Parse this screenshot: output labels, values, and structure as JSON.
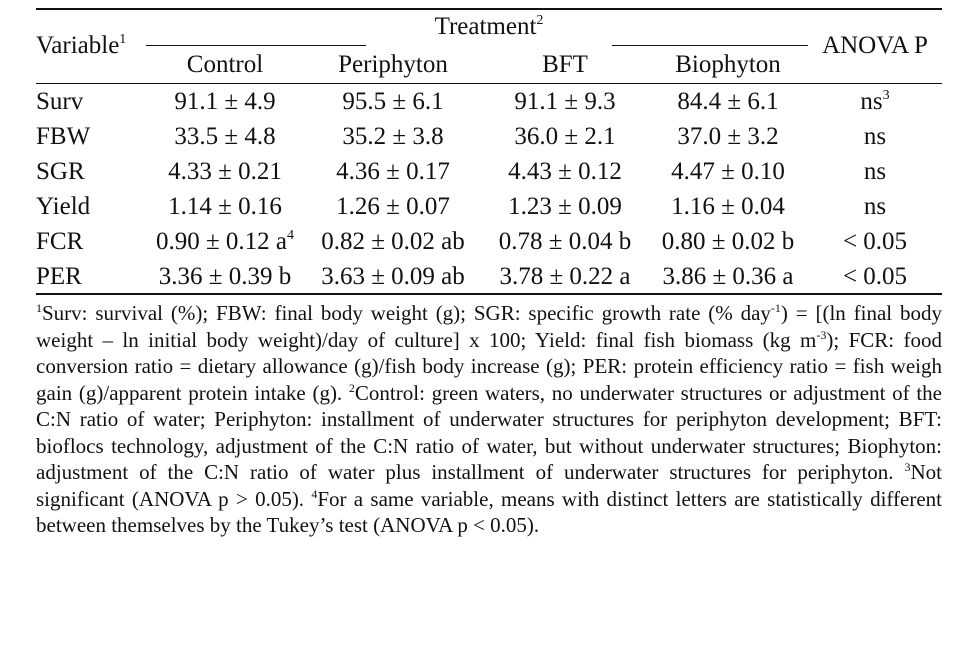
{
  "table": {
    "header": {
      "variable": "Variable",
      "variable_sup": "1",
      "treatment": "Treatment",
      "treatment_sup": "2",
      "anova": "ANOVA P",
      "groups": [
        "Control",
        "Periphyton",
        "BFT",
        "Biophyton"
      ]
    },
    "rows": [
      {
        "variable": "Surv",
        "control": "91.1 ± 4.9",
        "control_sup": "",
        "periphyton": "95.5 ± 6.1",
        "bft": "91.1 ± 9.3",
        "biophyton": "84.4 ± 6.1",
        "anova": "ns",
        "anova_sup": "3"
      },
      {
        "variable": "FBW",
        "control": "33.5 ± 4.8",
        "control_sup": "",
        "periphyton": "35.2 ± 3.8",
        "bft": "36.0 ± 2.1",
        "biophyton": "37.0 ± 3.2",
        "anova": "ns",
        "anova_sup": ""
      },
      {
        "variable": "SGR",
        "control": "4.33 ± 0.21",
        "control_sup": "",
        "periphyton": "4.36 ± 0.17",
        "bft": "4.43 ± 0.12",
        "biophyton": "4.47 ± 0.10",
        "anova": "ns",
        "anova_sup": ""
      },
      {
        "variable": "Yield",
        "control": "1.14 ± 0.16",
        "control_sup": "",
        "periphyton": "1.26 ± 0.07",
        "bft": "1.23 ± 0.09",
        "biophyton": "1.16 ± 0.04",
        "anova": "ns",
        "anova_sup": ""
      },
      {
        "variable": "FCR",
        "control": "0.90 ± 0.12 a",
        "control_sup": "4",
        "periphyton": "0.82 ± 0.02 ab",
        "bft": "0.78 ± 0.04 b",
        "biophyton": "0.80 ± 0.02 b",
        "anova": "< 0.05",
        "anova_sup": ""
      },
      {
        "variable": "PER",
        "control": "3.36 ± 0.39 b",
        "control_sup": "",
        "periphyton": "3.63 ± 0.09 ab",
        "bft": "3.78 ± 0.22 a",
        "biophyton": "3.86 ± 0.36 a",
        "anova": "< 0.05",
        "anova_sup": ""
      }
    ]
  },
  "footnotes": {
    "n1_mark": "1",
    "n1_a": "Surv: survival (%); FBW: final body weight (g); SGR: specific growth rate (% day",
    "n1_sup1": "-1",
    "n1_b": ") = [(ln final body weight – ln initial body weight)/day of culture] x 100; Yield: final fish biomass (kg m",
    "n1_sup2": "-3",
    "n1_c": "); FCR: food conversion ratio = dietary allowance (g)/fish body increase (g); PER: protein efficiency ratio = fish weigh gain (g)/apparent protein intake (g).",
    "n2_mark": "2",
    "n2": "Control: green waters, no underwater structures or adjustment of the C:N ratio of water; Periphyton: installment of underwater structures for periphyton development; BFT: bioflocs technology, adjustment of the C:N ratio of water, but without underwater structures; Biophyton: adjustment of the C:N ratio of water plus installment of underwater structures for periphyton.",
    "n3_mark": "3",
    "n3": "Not significant (ANOVA p > 0.05).",
    "n4_mark": "4",
    "n4": "For a same variable, means with distinct letters are statistically different between themselves by the Tukey’s test (ANOVA p < 0.05)."
  }
}
